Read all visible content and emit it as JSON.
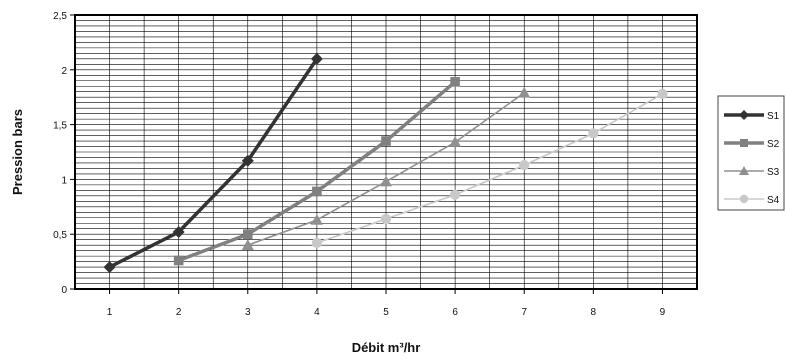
{
  "chart_data": {
    "type": "line",
    "title": "",
    "xlabel": "Débit m³/hr",
    "ylabel": "Pression bars",
    "x_ticks": [
      "1",
      "2",
      "3",
      "4",
      "5",
      "6",
      "7",
      "8",
      "9"
    ],
    "y_ticks": [
      "0",
      "0,5",
      "1",
      "1,5",
      "2",
      "2,5"
    ],
    "xlim": [
      0.5,
      9.5
    ],
    "ylim": [
      0,
      2.5
    ],
    "grid": true,
    "legend_position": "right",
    "series": [
      {
        "name": "S1",
        "color": "#333333",
        "marker": "diamond",
        "x": [
          1,
          2,
          3,
          4
        ],
        "y": [
          0.2,
          0.52,
          1.17,
          2.1
        ]
      },
      {
        "name": "S2",
        "color": "#808080",
        "marker": "square",
        "x": [
          2,
          3,
          4,
          5,
          6
        ],
        "y": [
          0.26,
          0.5,
          0.89,
          1.35,
          1.89
        ]
      },
      {
        "name": "S3",
        "color": "#909090",
        "marker": "triangle",
        "x": [
          3,
          4,
          5,
          6,
          7
        ],
        "y": [
          0.4,
          0.63,
          0.98,
          1.34,
          1.79
        ]
      },
      {
        "name": "S4",
        "color": "#c8c8c8",
        "marker": "circle",
        "x": [
          4,
          5,
          6,
          7,
          8,
          9
        ],
        "y": [
          0.42,
          0.64,
          0.86,
          1.13,
          1.42,
          1.78
        ]
      }
    ]
  }
}
